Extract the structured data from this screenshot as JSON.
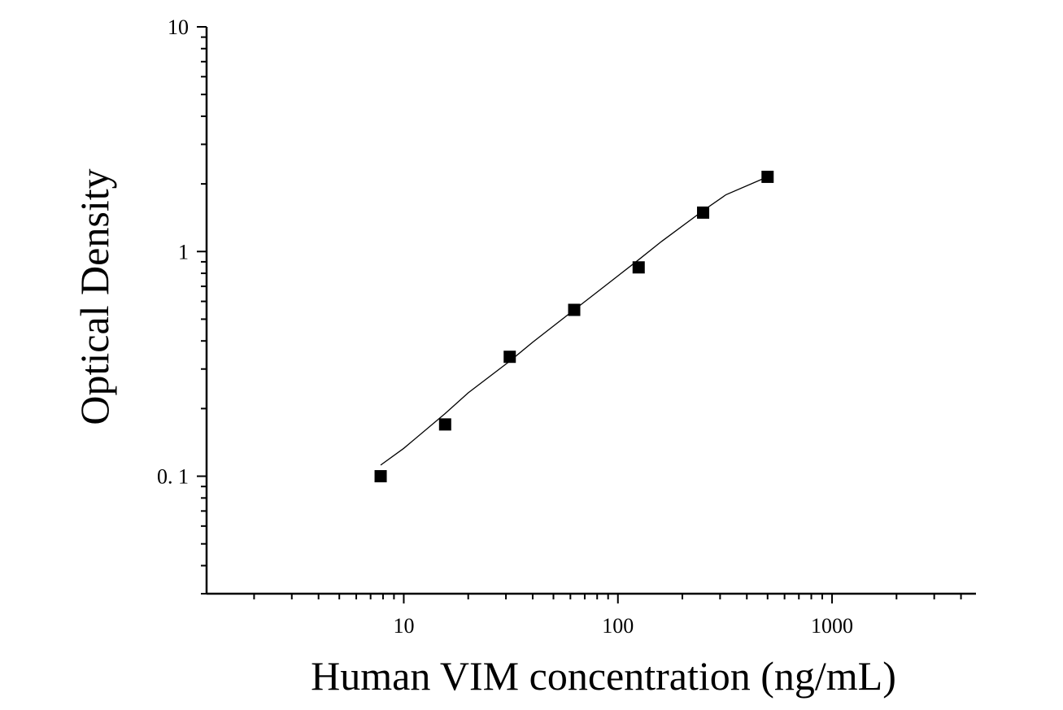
{
  "chart_data": {
    "type": "scatter",
    "xlabel": "Human VIM concentration (ng/mL)",
    "ylabel": "Optical Density",
    "xscale": "log",
    "yscale": "log",
    "xlim": [
      1.2,
      4700
    ],
    "ylim": [
      0.03,
      10
    ],
    "x_ticks": [
      10,
      100,
      1000
    ],
    "x_tick_labels": [
      "10",
      "100",
      "1000"
    ],
    "y_ticks": [
      10,
      1,
      0.1
    ],
    "y_tick_labels": [
      "10",
      "1",
      "0. 1"
    ],
    "grid": false,
    "marker": "square",
    "marker_color": "#000000",
    "curve_color": "#000000",
    "series": [
      {
        "x": [
          7.8,
          15.6,
          31.25,
          62.5,
          125,
          250,
          500
        ],
        "y": [
          0.1,
          0.17,
          0.34,
          0.55,
          0.85,
          1.49,
          2.15
        ]
      }
    ],
    "fit_curve": {
      "x": [
        7.8,
        10,
        15.6,
        20,
        31.25,
        40,
        62.5,
        80,
        125,
        160,
        250,
        320,
        500
      ],
      "y": [
        0.112,
        0.133,
        0.19,
        0.235,
        0.325,
        0.395,
        0.55,
        0.66,
        0.92,
        1.11,
        1.52,
        1.79,
        2.15
      ]
    }
  }
}
